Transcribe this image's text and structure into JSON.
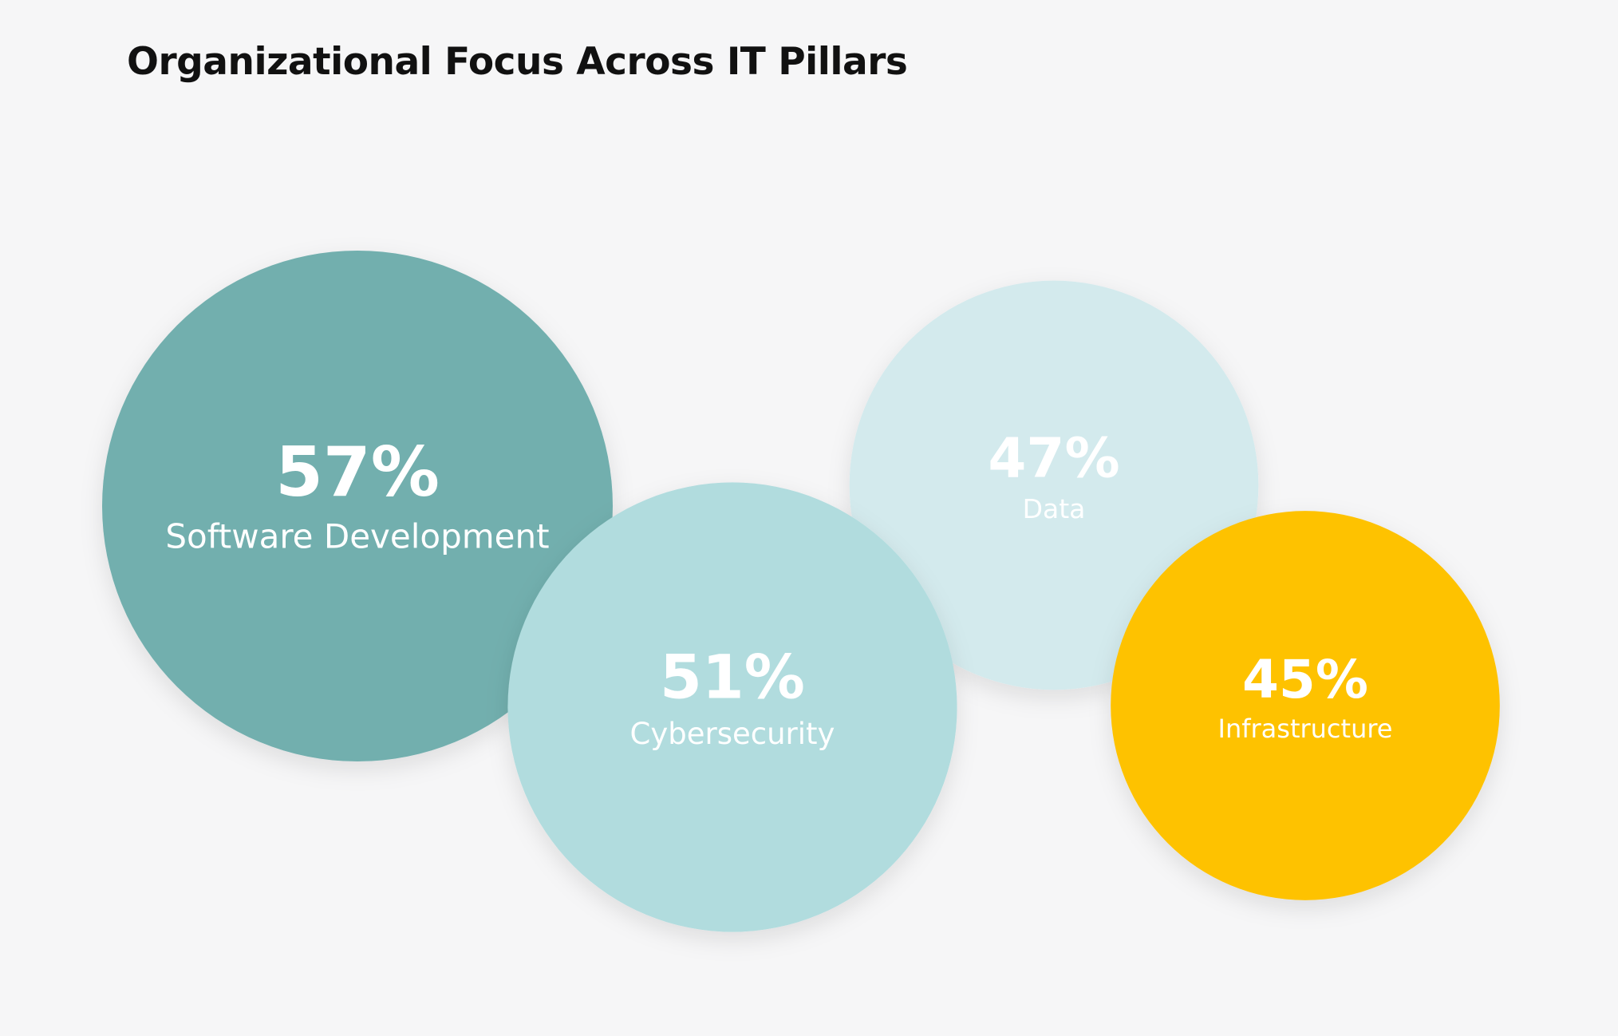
{
  "chart_data": {
    "type": "bubble",
    "title": "Organizational Focus Across IT Pillars",
    "unit": "%",
    "series": [
      {
        "name": "Software Development",
        "value": 57,
        "value_label": "57%",
        "color": "#72afae"
      },
      {
        "name": "Cybersecurity",
        "value": 51,
        "value_label": "51%",
        "color": "#b1dcde"
      },
      {
        "name": "Data",
        "value": 47,
        "value_label": "47%",
        "color": "#d3eaed"
      },
      {
        "name": "Infrastructure",
        "value": 45,
        "value_label": "45%",
        "color": "#fec200"
      }
    ],
    "legend": "none",
    "grid": false
  }
}
